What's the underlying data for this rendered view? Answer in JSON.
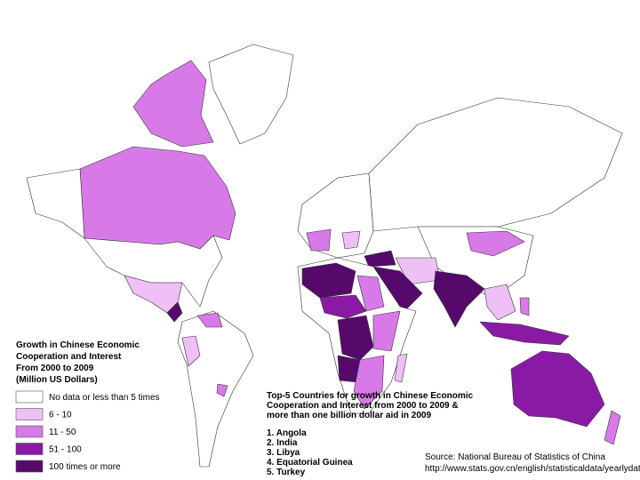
{
  "title_lines": [
    "Growth in Chinese Economic",
    "Cooperation and Interest",
    "From 2000 to 2009",
    "(Million US Dollars)"
  ],
  "legend": [
    {
      "label": "No data or less than 5 times",
      "color": "#ffffff"
    },
    {
      "label": "6 - 10",
      "color": "#eec0f5"
    },
    {
      "label": "11 - 50",
      "color": "#d77ae8"
    },
    {
      "label": "51 - 100",
      "color": "#8a1aa6"
    },
    {
      "label": "100 times or more",
      "color": "#56096b"
    }
  ],
  "top5": {
    "heading_lines": [
      "Top-5 Countries for growth in Chinese Economic",
      "Cooperation and Interest from 2000 to 2009 &",
      "more than one billion dollar aid in 2009"
    ],
    "items": [
      "1. Angola",
      "2. India",
      "3. Libya",
      "4. Equatorial Guinea",
      "5. Turkey"
    ]
  },
  "source_lines": [
    "Source: National Bureau of Statistics of China",
    "http://www.stats.gov.cn/english/statisticaldata/yearlydata/"
  ]
}
